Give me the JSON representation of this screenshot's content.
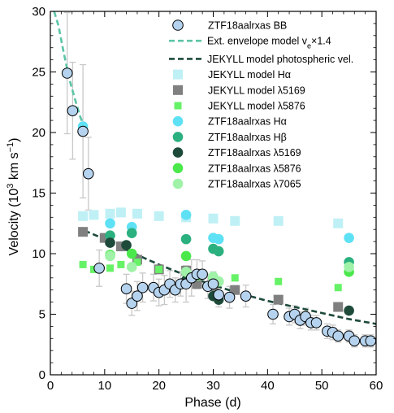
{
  "chart_data": {
    "type": "scatter",
    "xlabel": "Phase (d)",
    "ylabel_main": "Velocity (10",
    "ylabel_sup": "3",
    "ylabel_mid": " km s",
    "ylabel_sup2": "−1",
    "ylabel_end": ")",
    "xlim": [
      0,
      60
    ],
    "ylim": [
      0,
      30
    ],
    "xticks": [
      0,
      10,
      20,
      30,
      40,
      50,
      60
    ],
    "yticks": [
      0,
      5,
      10,
      15,
      20,
      25,
      30
    ],
    "legend_position": "top-right",
    "colors": {
      "bb_fill": "#b5d3ee",
      "envelope": "#5cc4a6",
      "photospheric": "#1d4a3c",
      "jekyll_ha": "#bff0f5",
      "jekyll_5169": "#808080",
      "jekyll_5876": "#66f266",
      "obs_ha": "#5ee1f5",
      "obs_hb": "#2bb07f",
      "obs_5169": "#1e4a3a",
      "obs_5876": "#4be84b",
      "obs_7065": "#9ff2a8",
      "errorbar": "#c8c8c8"
    },
    "legend": [
      {
        "label": "ZTF18aalrxas BB",
        "marker": "circle-outline",
        "color": "#b5d3ee"
      },
      {
        "label": "Ext. envelope model v",
        "sub": "e",
        "tail": "×1.4",
        "marker": "dash-line",
        "color": "#5cc4a6"
      },
      {
        "label": "JEKYLL model photospheric vel.",
        "marker": "dash-line",
        "color": "#1d4a3c"
      },
      {
        "label": "JEKYLL model Hα",
        "marker": "square",
        "color": "#bff0f5"
      },
      {
        "label": "JEKYLL model λ5169",
        "marker": "square",
        "color": "#808080"
      },
      {
        "label": "JEKYLL model λ5876",
        "marker": "square-small",
        "color": "#66f266"
      },
      {
        "label": "ZTF18aalrxas Hα",
        "marker": "circle",
        "color": "#5ee1f5"
      },
      {
        "label": "ZTF18aalrxas Hβ",
        "marker": "circle",
        "color": "#2bb07f"
      },
      {
        "label": "ZTF18aalrxas λ5169",
        "marker": "circle",
        "color": "#1e4a3a"
      },
      {
        "label": "ZTF18aalrxas λ5876",
        "marker": "circle",
        "color": "#4be84b"
      },
      {
        "label": "ZTF18aalrxas λ7065",
        "marker": "circle",
        "color": "#9ff2a8"
      }
    ],
    "series": [
      {
        "key": "envelope",
        "x": [
          0.7,
          1.5,
          2.5,
          3.5,
          4.5,
          5.5,
          6.5
        ],
        "y": [
          30,
          28.8,
          26.5,
          24.4,
          22.8,
          21.3,
          20.2
        ]
      },
      {
        "key": "photospheric",
        "x": [
          6.3,
          10,
          15,
          20,
          25,
          30,
          35,
          40,
          45,
          50,
          55,
          60
        ],
        "y": [
          11.9,
          11.2,
          10.1,
          9.1,
          8.2,
          7.4,
          6.7,
          6.1,
          5.6,
          5.1,
          4.6,
          4.2
        ]
      },
      {
        "key": "jekyll_ha",
        "x": [
          6,
          8,
          11,
          13,
          16,
          20,
          25,
          30,
          34,
          42,
          53
        ],
        "y": [
          13.1,
          13.2,
          13.3,
          13.4,
          13.3,
          13.1,
          13.0,
          12.9,
          12.7,
          12.7,
          12.5
        ]
      },
      {
        "key": "jekyll_5169",
        "x": [
          6,
          10,
          13,
          16,
          20,
          25,
          27,
          30,
          34,
          42,
          53
        ],
        "y": [
          11.8,
          11.3,
          10.6,
          9.5,
          8.7,
          8.6,
          7.5,
          7.3,
          7.0,
          6.2,
          5.6
        ]
      },
      {
        "key": "jekyll_5876",
        "x": [
          6,
          8,
          11,
          13,
          16,
          20,
          25,
          27,
          30,
          31,
          34,
          42,
          53
        ],
        "y": [
          9.1,
          8.7,
          8.8,
          9.1,
          9.3,
          8.7,
          8.0,
          8.1,
          7.8,
          7.7,
          8.0,
          7.7,
          7.2
        ]
      },
      {
        "key": "obs_ha",
        "x": [
          6,
          11,
          15,
          25,
          30,
          31,
          55
        ],
        "y": [
          20.5,
          12.5,
          12.2,
          13.2,
          11.3,
          11.2,
          11.3
        ]
      },
      {
        "key": "obs_hb",
        "x": [
          11,
          15,
          25,
          30,
          31,
          55
        ],
        "y": [
          11.5,
          11.7,
          11.2,
          10.4,
          10.2,
          9.3
        ]
      },
      {
        "key": "obs_5169",
        "x": [
          11,
          14,
          25,
          30,
          31,
          55
        ],
        "y": [
          10.9,
          10.7,
          7.8,
          6.5,
          6.2,
          5.3
        ]
      },
      {
        "key": "obs_5876",
        "x": [
          11,
          15,
          25,
          30,
          31,
          55
        ],
        "y": [
          9.9,
          10.0,
          9.8,
          8.0,
          7.7,
          8.5
        ]
      },
      {
        "key": "obs_7065",
        "x": [
          11,
          15,
          25,
          30,
          31,
          55
        ],
        "y": [
          9.8,
          8.9,
          8.5,
          8.1,
          7.7,
          8.9
        ]
      }
    ],
    "bb": {
      "x": [
        3.1,
        4.1,
        6.0,
        7.0,
        9.0,
        14.0,
        15.0,
        16.0,
        17.0,
        19.0,
        20.0,
        21.0,
        22.0,
        23.0,
        24.0,
        25.0,
        26.0,
        27.0,
        28.0,
        29.0,
        30.0,
        31.0,
        33.0,
        36.0,
        41.0,
        44.0,
        45.0,
        46.0,
        47.0,
        48.0,
        49.0,
        51.0,
        52.0,
        53.0,
        55.0,
        56.0,
        58.0,
        59.0
      ],
      "y": [
        24.9,
        21.8,
        20.1,
        16.6,
        8.8,
        7.1,
        5.9,
        6.5,
        7.2,
        7.2,
        6.8,
        7.0,
        7.5,
        7.0,
        7.5,
        7.5,
        8.0,
        8.3,
        8.3,
        7.3,
        7.5,
        6.6,
        6.4,
        6.5,
        5.0,
        4.8,
        5.0,
        4.5,
        4.8,
        4.3,
        4.3,
        3.6,
        3.5,
        3.2,
        3.2,
        2.8,
        2.8,
        2.8
      ],
      "err": [
        5.0,
        4.0,
        5.5,
        3.0,
        1.5,
        1.2,
        1.0,
        1.2,
        1.2,
        1.1,
        1.1,
        1.2,
        1.1,
        1.0,
        1.0,
        1.5,
        1.5,
        1.2,
        1.1,
        1.0,
        1.0,
        1.0,
        0.9,
        0.9,
        0.8,
        0.7,
        0.7,
        0.7,
        0.7,
        0.6,
        0.6,
        0.6,
        0.6,
        0.5,
        0.5,
        0.5,
        0.5,
        0.5
      ]
    }
  }
}
